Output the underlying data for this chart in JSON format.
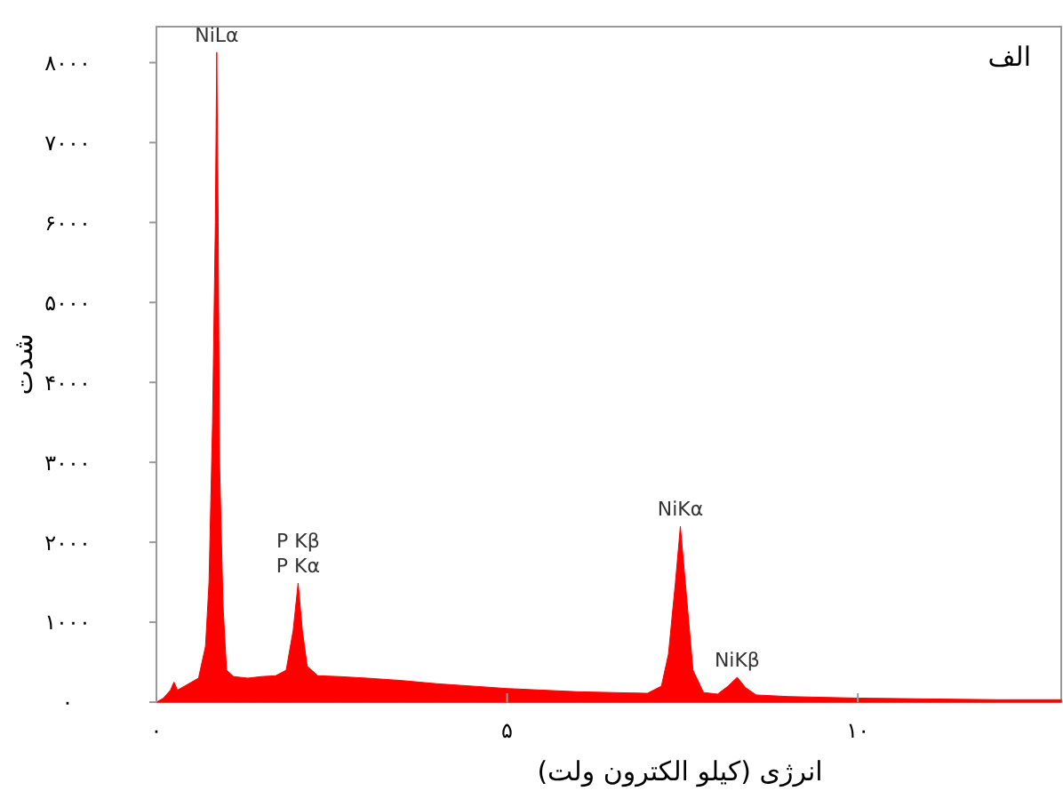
{
  "chart_data": {
    "type": "area",
    "title": "الف",
    "xlabel": "انرژی (کیلو الکترون ولت)",
    "ylabel": "شدت",
    "x": [
      0,
      0.1,
      0.2,
      0.25,
      0.3,
      0.4,
      0.5,
      0.6,
      0.7,
      0.75,
      0.8,
      0.84,
      0.86,
      0.88,
      0.9,
      0.95,
      1.0,
      1.1,
      1.3,
      1.5,
      1.7,
      1.85,
      1.95,
      2.02,
      2.08,
      2.15,
      2.3,
      2.6,
      3,
      3.5,
      4,
      4.5,
      5,
      5.5,
      6,
      6.5,
      7.0,
      7.2,
      7.3,
      7.4,
      7.47,
      7.55,
      7.65,
      7.8,
      8.0,
      8.15,
      8.28,
      8.4,
      8.55,
      9,
      10,
      11,
      12,
      12.9
    ],
    "series": [
      {
        "color": "#ff0000",
        "values": [
          0,
          50,
          150,
          250,
          150,
          200,
          250,
          300,
          700,
          1500,
          3500,
          6000,
          8130,
          6000,
          3000,
          1200,
          400,
          320,
          300,
          320,
          330,
          400,
          900,
          1490,
          900,
          450,
          330,
          320,
          300,
          270,
          230,
          200,
          170,
          150,
          130,
          120,
          110,
          200,
          600,
          1500,
          2200,
          1400,
          400,
          120,
          100,
          200,
          310,
          180,
          90,
          70,
          50,
          40,
          30,
          30
        ]
      }
    ],
    "xlim": [
      0,
      12.9
    ],
    "ylim": [
      0,
      8450
    ],
    "xticks": [
      {
        "value": 0,
        "label": "۰"
      },
      {
        "value": 5,
        "label": "۵"
      },
      {
        "value": 10,
        "label": "۱۰"
      }
    ],
    "yticks": [
      {
        "value": 0,
        "label": "۰"
      },
      {
        "value": 1000,
        "label": "۱۰۰۰"
      },
      {
        "value": 2000,
        "label": "۲۰۰۰"
      },
      {
        "value": 3000,
        "label": "۳۰۰۰"
      },
      {
        "value": 4000,
        "label": "۴۰۰۰"
      },
      {
        "value": 5000,
        "label": "۵۰۰۰"
      },
      {
        "value": 6000,
        "label": "۶۰۰۰"
      },
      {
        "value": 7000,
        "label": "۷۰۰۰"
      },
      {
        "value": 8000,
        "label": "۸۰۰۰"
      }
    ],
    "annotations": [
      {
        "text": "NiLα",
        "x": 0.86,
        "y": 8130
      },
      {
        "text": "P Kβ",
        "x": 2.02,
        "y": 1490
      },
      {
        "text": "P Kα",
        "x": 2.02,
        "y": 1490
      },
      {
        "text": "NiKα",
        "x": 7.47,
        "y": 2200
      },
      {
        "text": "NiKβ",
        "x": 8.28,
        "y": 310
      }
    ],
    "grid": false
  }
}
